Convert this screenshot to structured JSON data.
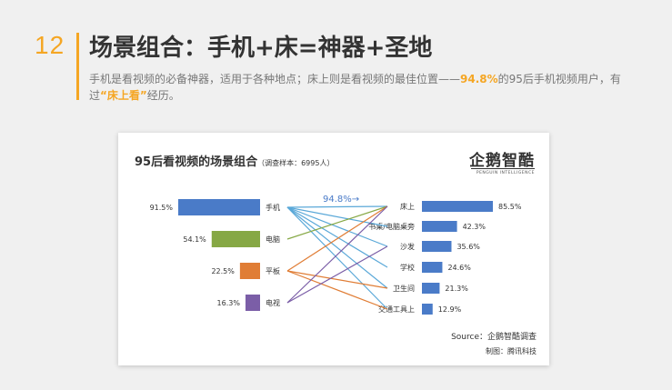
{
  "header": {
    "number": "12",
    "title": "场景组合：手机+床=神器+圣地",
    "desc_before": "手机是看视频的必备神器，适用于各种地点；床上则是看视频的最佳位置——",
    "desc_pct": "94.8%",
    "desc_mid": "的95后手机视频用户，有过",
    "desc_quote": "“床上看”",
    "desc_after": "经历。"
  },
  "logo": {
    "text": "企鹅智酷",
    "sub": "PENGUIN INTELLIGENCE"
  },
  "colors": {
    "accent": "#f5a623",
    "blue": "#4a7bc8",
    "green": "#86a845",
    "orange": "#e07d35",
    "purple": "#7b5ea7"
  },
  "chart_data": {
    "type": "bar",
    "title": "95后看视频的场景组合",
    "subtitle": "（调查样本：6995人）",
    "left": {
      "categories": [
        "手机",
        "电脑",
        "平板",
        "电视"
      ],
      "values": [
        91.5,
        54.1,
        22.5,
        16.3
      ],
      "value_labels": [
        "91.5%",
        "54.1%",
        "22.5%",
        "16.3%"
      ]
    },
    "right": {
      "categories": [
        "床上",
        "书桌/电脑桌旁",
        "沙发",
        "学校",
        "卫生间",
        "交通工具上"
      ],
      "values": [
        85.5,
        42.3,
        35.6,
        24.6,
        21.3,
        12.9
      ],
      "value_labels": [
        "85.5%",
        "42.3%",
        "35.6%",
        "24.6%",
        "21.3%",
        "12.9%"
      ]
    },
    "annotation": "94.8%→",
    "source": "Source：企鹅智酷调查",
    "credit": "制图：腾讯科技"
  }
}
